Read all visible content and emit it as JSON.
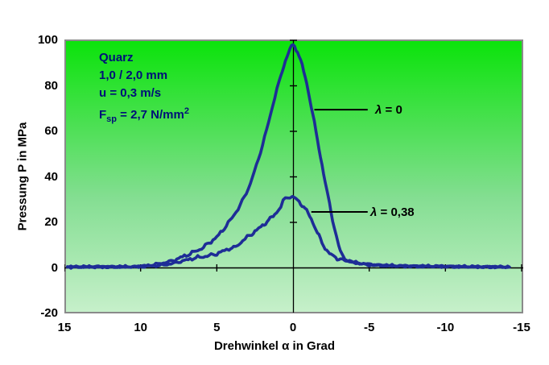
{
  "chart_data": {
    "type": "line",
    "title": "",
    "xlabel": "Drehwinkel α in Grad",
    "ylabel": "Pressung P in MPa",
    "xlim": [
      15,
      -15
    ],
    "ylim": [
      -20,
      100
    ],
    "x_axis_reversed": true,
    "grid": false,
    "x_ticks": [
      "15",
      "10",
      "5",
      "0",
      "-5",
      "-10",
      "-15"
    ],
    "x_tick_values": [
      15,
      10,
      5,
      0,
      -5,
      -10,
      -15
    ],
    "y_ticks": [
      "100",
      "80",
      "60",
      "40",
      "20",
      "0",
      "-20"
    ],
    "y_tick_values": [
      100,
      80,
      60,
      40,
      20,
      0,
      -20
    ],
    "colors": {
      "curve": "#1e2d96",
      "axis": "#000000",
      "plot_border": "#8a8a8a",
      "bg_gradient_top": "#0be30b",
      "bg_gradient_bottom": "#c6f0ca",
      "annotation_text": "#000f78"
    },
    "annotation": {
      "line1": "Quarz",
      "line2": "1,0 / 2,0 mm",
      "line3": "u = 0,3 m/s",
      "line4_pre": "F",
      "line4_sub": "sp",
      "line4_mid": " = 2,7 N/mm",
      "line4_sup": "2"
    },
    "callouts": [
      {
        "label_lambda": "λ",
        "label_rest": " = 0",
        "line_from_xy": [
          -1.4,
          69.5
        ],
        "line_to_x": -4.9
      },
      {
        "label_lambda": "λ",
        "label_rest": " = 0,38",
        "line_from_xy": [
          -1.2,
          24.6
        ],
        "line_to_x": -4.9
      }
    ],
    "series": [
      {
        "name": "λ = 0",
        "points": [
          [
            14.8,
            0.5
          ],
          [
            14,
            0.4
          ],
          [
            13,
            0.6
          ],
          [
            12,
            0.4
          ],
          [
            11,
            0.5
          ],
          [
            10.5,
            0.4
          ],
          [
            10,
            0.8
          ],
          [
            9.5,
            1.1
          ],
          [
            9,
            1.6
          ],
          [
            8.5,
            2.2
          ],
          [
            8,
            3.0
          ],
          [
            7.5,
            4.2
          ],
          [
            7,
            5.5
          ],
          [
            6.5,
            7.0
          ],
          [
            6,
            8.5
          ],
          [
            5.5,
            11.0
          ],
          [
            5,
            13.5
          ],
          [
            4.5,
            17.5
          ],
          [
            4,
            22
          ],
          [
            3.6,
            26
          ],
          [
            3.2,
            31
          ],
          [
            2.8,
            37
          ],
          [
            2.4,
            45
          ],
          [
            2.0,
            54
          ],
          [
            1.6,
            64
          ],
          [
            1.2,
            75
          ],
          [
            0.9,
            82
          ],
          [
            0.6,
            89
          ],
          [
            0.3,
            94.5
          ],
          [
            0.1,
            97.5
          ],
          [
            -0.1,
            97.5
          ],
          [
            -0.3,
            95
          ],
          [
            -0.6,
            89
          ],
          [
            -0.9,
            81
          ],
          [
            -1.2,
            71
          ],
          [
            -1.5,
            60
          ],
          [
            -1.8,
            49
          ],
          [
            -2.1,
            38
          ],
          [
            -2.4,
            28
          ],
          [
            -2.7,
            18
          ],
          [
            -3.0,
            9.5
          ],
          [
            -3.2,
            6
          ],
          [
            -3.4,
            4.2
          ],
          [
            -3.7,
            3.0
          ],
          [
            -4,
            2.3
          ],
          [
            -4.5,
            1.7
          ],
          [
            -5,
            1.3
          ],
          [
            -6,
            1.0
          ],
          [
            -7,
            0.8
          ],
          [
            -8,
            0.7
          ],
          [
            -9,
            0.7
          ],
          [
            -10,
            0.6
          ],
          [
            -11,
            0.5
          ],
          [
            -12,
            0.5
          ],
          [
            -13,
            0.4
          ],
          [
            -14.2,
            0.4
          ]
        ]
      },
      {
        "name": "λ = 0,38",
        "points": [
          [
            14.8,
            0.4
          ],
          [
            14,
            0.5
          ],
          [
            13,
            0.4
          ],
          [
            12,
            0.5
          ],
          [
            11,
            0.5
          ],
          [
            10,
            0.6
          ],
          [
            9,
            0.9
          ],
          [
            8.5,
            1.3
          ],
          [
            8,
            1.8
          ],
          [
            7.5,
            2.6
          ],
          [
            7,
            3.4
          ],
          [
            6.5,
            4.3
          ],
          [
            6,
            4.8
          ],
          [
            5.5,
            5.4
          ],
          [
            5,
            6.2
          ],
          [
            4.5,
            7.6
          ],
          [
            4.2,
            8.5
          ],
          [
            3.9,
            8.8
          ],
          [
            3.6,
            10
          ],
          [
            3.3,
            12
          ],
          [
            3.0,
            13.5
          ],
          [
            2.7,
            15
          ],
          [
            2.4,
            16.5
          ],
          [
            2.1,
            18
          ],
          [
            1.8,
            19.8
          ],
          [
            1.5,
            21.5
          ],
          [
            1.2,
            23.5
          ],
          [
            0.95,
            25.5
          ],
          [
            0.8,
            27
          ],
          [
            0.65,
            29
          ],
          [
            0.5,
            30.8
          ],
          [
            0.35,
            31.2
          ],
          [
            0.2,
            30.9
          ],
          [
            0.05,
            31.3
          ],
          [
            -0.1,
            30.7
          ],
          [
            -0.3,
            29.6
          ],
          [
            -0.5,
            28.4
          ],
          [
            -0.7,
            26.8
          ],
          [
            -0.9,
            25
          ],
          [
            -1.1,
            22.8
          ],
          [
            -1.3,
            20
          ],
          [
            -1.5,
            17
          ],
          [
            -1.7,
            14
          ],
          [
            -1.9,
            11
          ],
          [
            -2.1,
            8.8
          ],
          [
            -2.3,
            7
          ],
          [
            -2.5,
            5.8
          ],
          [
            -2.8,
            4.6
          ],
          [
            -3.1,
            3.8
          ],
          [
            -3.4,
            3.2
          ],
          [
            -3.7,
            2.9
          ],
          [
            -4,
            2.5
          ],
          [
            -4.5,
            2.0
          ],
          [
            -5,
            1.6
          ],
          [
            -5.5,
            1.3
          ],
          [
            -6,
            1.1
          ],
          [
            -7,
            0.9
          ],
          [
            -8,
            0.8
          ],
          [
            -9,
            0.7
          ],
          [
            -10,
            0.7
          ],
          [
            -11,
            0.6
          ],
          [
            -12,
            0.5
          ],
          [
            -13,
            0.5
          ],
          [
            -14.2,
            0.4
          ]
        ]
      }
    ]
  }
}
